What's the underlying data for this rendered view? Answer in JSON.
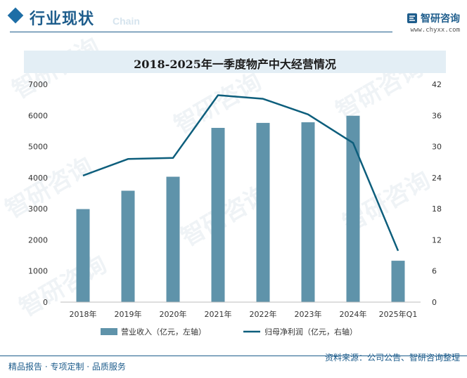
{
  "header": {
    "title": "行业现状",
    "subtitle": "Chain",
    "brand_name": "智研咨询",
    "brand_url": "www.chyxx.com"
  },
  "chart_data": {
    "type": "bar",
    "title": "2018-2025年一季度物产中大经营情况",
    "categories": [
      "2018年",
      "2019年",
      "2020年",
      "2021年",
      "2022年",
      "2023年",
      "2024年",
      "2025年Q1"
    ],
    "series": [
      {
        "name": "营业收入（亿元，左轴）",
        "type": "bar",
        "axis": "left",
        "values": [
          2990,
          3580,
          4030,
          5600,
          5760,
          5780,
          5990,
          1330
        ]
      },
      {
        "name": "归母净利润（亿元，右轴）",
        "type": "line",
        "axis": "right",
        "values": [
          24.4,
          27.6,
          27.8,
          39.9,
          39.2,
          36.2,
          30.7,
          9.9
        ]
      }
    ],
    "y_left": {
      "min": 0,
      "max": 7000,
      "ticks": [
        0,
        1000,
        2000,
        3000,
        4000,
        5000,
        6000,
        7000
      ]
    },
    "y_right": {
      "min": 0,
      "max": 42,
      "ticks": [
        0,
        6,
        12,
        18,
        24,
        30,
        36,
        42
      ]
    },
    "legend_position": "bottom",
    "grid": false
  },
  "colors": {
    "bar": "#5f93aa",
    "line": "#0d5e7c",
    "accent": "#1e5d8c"
  },
  "footer": {
    "left_text": "精品报告 · 专项定制 · 品质服务",
    "source_text": "资料来源：公司公告、智研咨询整理"
  }
}
